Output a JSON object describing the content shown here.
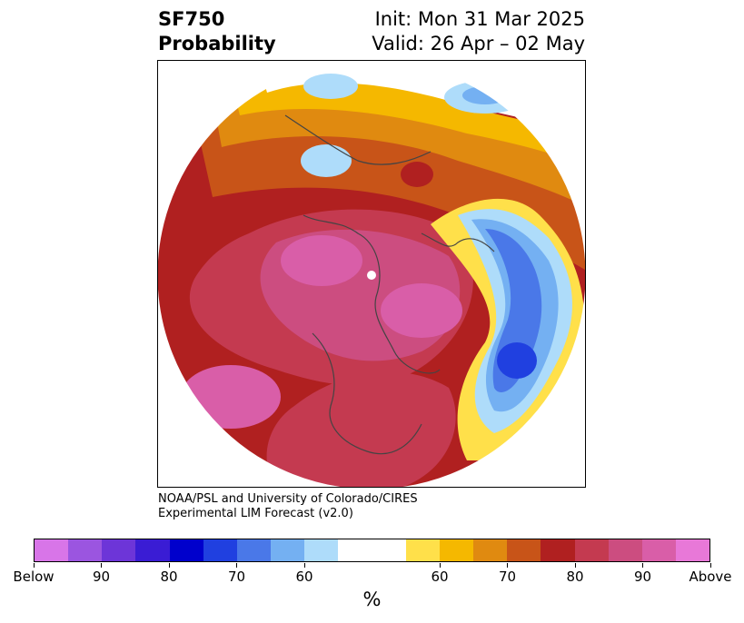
{
  "title": {
    "left": [
      "SF750",
      "Probability"
    ],
    "right": [
      "Init: Mon 31 Mar 2025",
      "Valid: 26 Apr – 02 May"
    ]
  },
  "credit": [
    "NOAA/PSL and University of Colorado/CIRES",
    "Experimental LIM Forecast (v2.0)"
  ],
  "colorbar": {
    "colors": [
      "#d875e8",
      "#9b55e0",
      "#6d35d8",
      "#3a1cd4",
      "#0000cc",
      "#2040e0",
      "#4a78e8",
      "#74b0f2",
      "#aedcfa",
      "#ffffff",
      "#ffffff",
      "#ffe04a",
      "#f5b800",
      "#e08a10",
      "#c85418",
      "#b02020",
      "#c43a50",
      "#cc4d80",
      "#d95ea8",
      "#e878d8"
    ],
    "tick_labels": [
      "Below",
      "90",
      "80",
      "70",
      "60",
      "60",
      "70",
      "80",
      "90",
      "Above"
    ],
    "unit": "%"
  },
  "map_colors": {
    "above_dark": "#b02020",
    "above_mid": "#c43a50",
    "above_pink": "#cc4d80",
    "above_magenta": "#d95ea8",
    "yellow": "#ffe04a",
    "gold": "#f5b800",
    "orange": "#e08a10",
    "burnt": "#c85418",
    "blue_light": "#aedcfa",
    "blue_mid": "#74b0f2",
    "blue": "#4a78e8",
    "blue_dark": "#2040e0"
  }
}
